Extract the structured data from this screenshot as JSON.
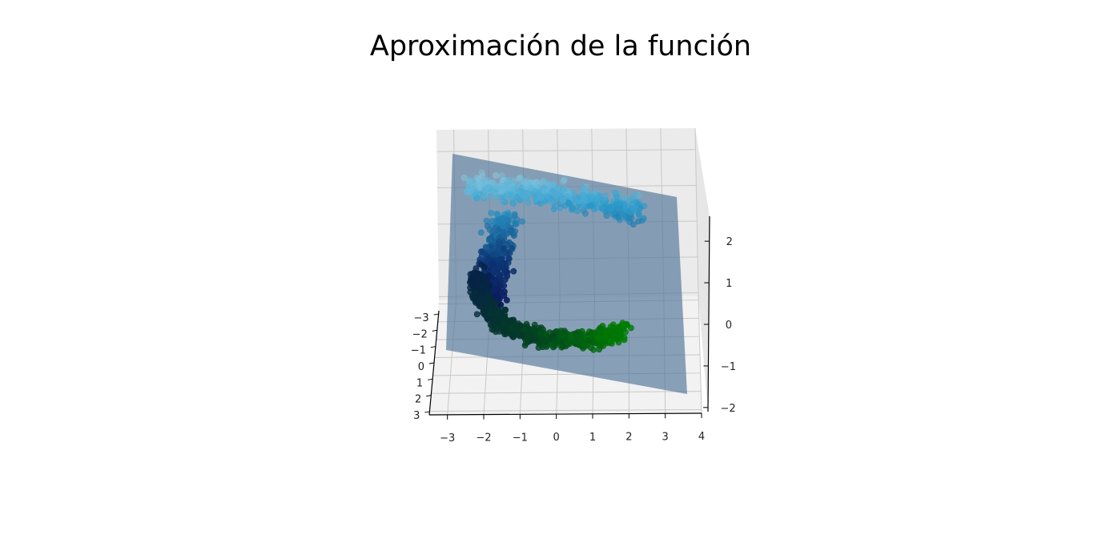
{
  "chart_data": {
    "type": "scatter",
    "projection": "3d",
    "title": "Aproximación de la función",
    "xlabel": "",
    "ylabel": "",
    "zlabel": "",
    "x_ticks": [
      "−3",
      "−2",
      "−1",
      "0",
      "1",
      "2",
      "3",
      "4"
    ],
    "x_tick_values": [
      -3,
      -2,
      -1,
      0,
      1,
      2,
      3,
      4
    ],
    "y_ticks": [
      "−3",
      "−2",
      "−1",
      "0",
      "1",
      "2",
      "3"
    ],
    "y_tick_values": [
      -3,
      -2,
      -1,
      0,
      1,
      2,
      3
    ],
    "z_ticks": [
      "2",
      "1",
      "0",
      "−1",
      "−2"
    ],
    "z_tick_values": [
      2,
      1,
      0,
      -1,
      -2
    ],
    "xlim": [
      -3.5,
      4
    ],
    "ylim": [
      -3.2,
      3.2
    ],
    "zlim": [
      -2.1,
      2.6
    ],
    "grid": true,
    "surface": {
      "kind": "fitted plane",
      "color": "#4f7397",
      "opacity": 0.65
    },
    "series": [
      {
        "description": "upper arc, colored light blue to dark blue",
        "colors": [
          "#b9e2ef",
          "#2b9ccc",
          "#0d3a78",
          "#0b1457"
        ],
        "count": 900
      },
      {
        "description": "lower arc, colored dark navy to green",
        "colors": [
          "#06224a",
          "#053b26",
          "#008000"
        ],
        "count": 900
      }
    ]
  }
}
